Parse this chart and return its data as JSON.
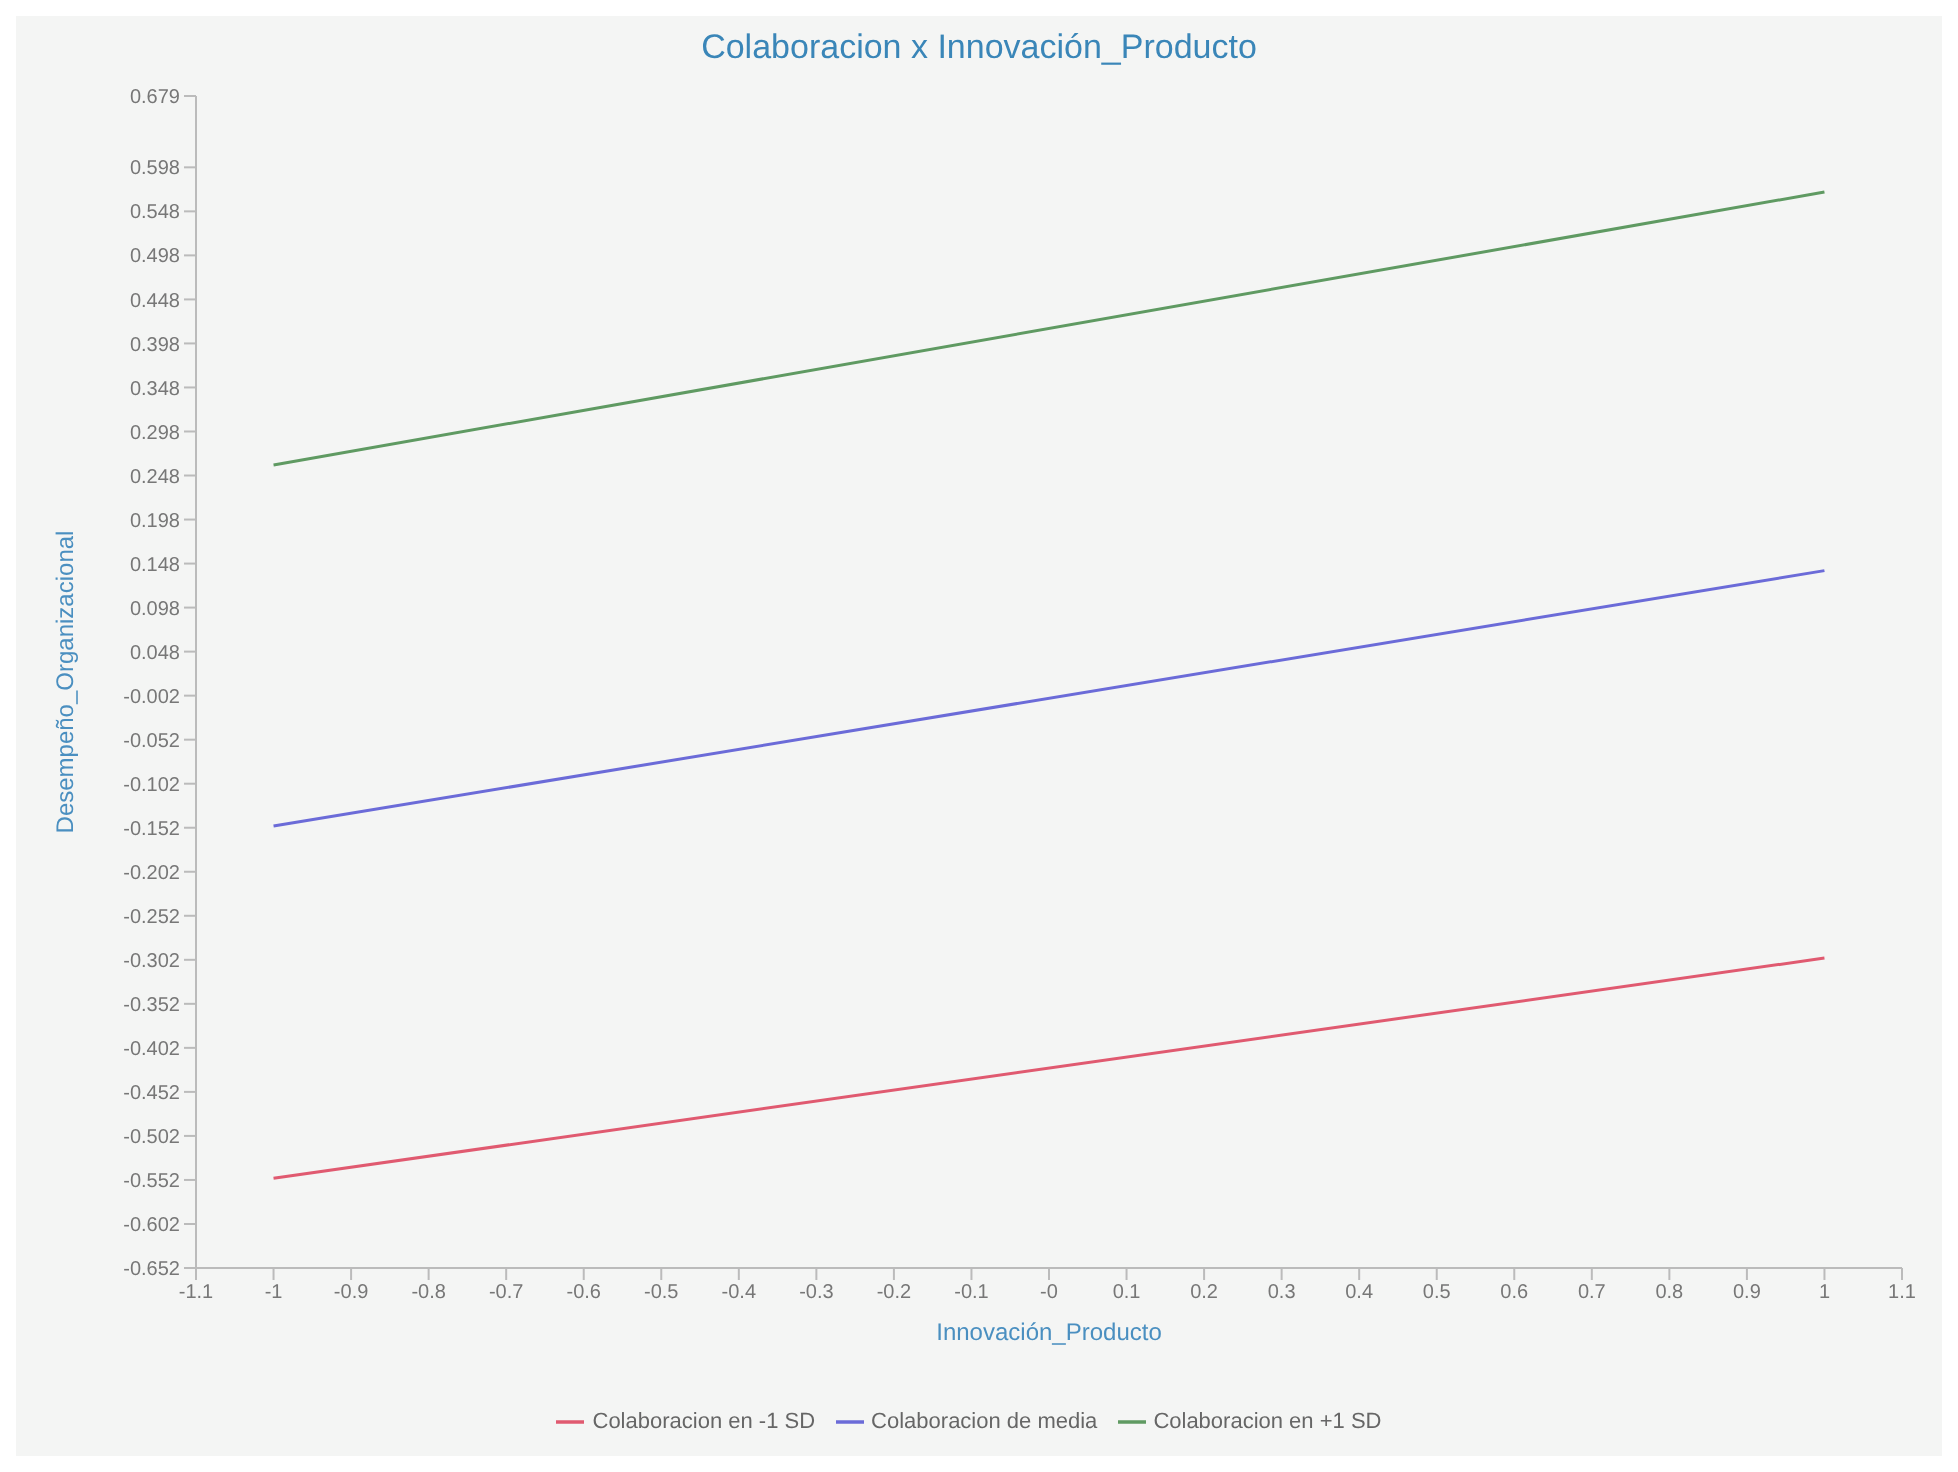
{
  "chart_data": {
    "type": "line",
    "title": "Colaboracion x Innovación_Producto",
    "xlabel": "Innovación_Producto",
    "ylabel": "Desempeño_Organizacional",
    "x": [
      -1,
      1
    ],
    "series": [
      {
        "name": "Colaboracion en -1 SD",
        "color": "#e05a70",
        "values": [
          -0.55,
          -0.3
        ]
      },
      {
        "name": "Colaboracion de media",
        "color": "#6b6bd8",
        "values": [
          -0.15,
          0.14
        ]
      },
      {
        "name": "Colaboracion en +1 SD",
        "color": "#5f9a62",
        "values": [
          0.26,
          0.57
        ]
      }
    ],
    "xlim": [
      -1.1,
      1.1
    ],
    "xticks": [
      -1.1,
      -1,
      -0.9,
      -0.8,
      -0.7,
      -0.6,
      -0.5,
      -0.4,
      -0.3,
      -0.2,
      -0.1,
      {
        "value": 0,
        "label": "-0"
      },
      0.1,
      0.2,
      0.3,
      0.4,
      0.5,
      0.6,
      0.7,
      0.8,
      0.9,
      1,
      1.1
    ],
    "ylim": [
      -0.652,
      0.679
    ],
    "yticks": [
      0.679,
      0.598,
      0.548,
      0.498,
      0.448,
      0.398,
      0.348,
      0.298,
      0.248,
      0.198,
      0.148,
      0.098,
      0.048,
      -0.002,
      -0.052,
      -0.102,
      -0.152,
      -0.202,
      -0.252,
      -0.302,
      -0.352,
      -0.402,
      -0.452,
      -0.502,
      -0.552,
      -0.602,
      -0.652
    ],
    "grid": false,
    "legend": "bottom",
    "marker": "none",
    "line_style": "solid"
  }
}
